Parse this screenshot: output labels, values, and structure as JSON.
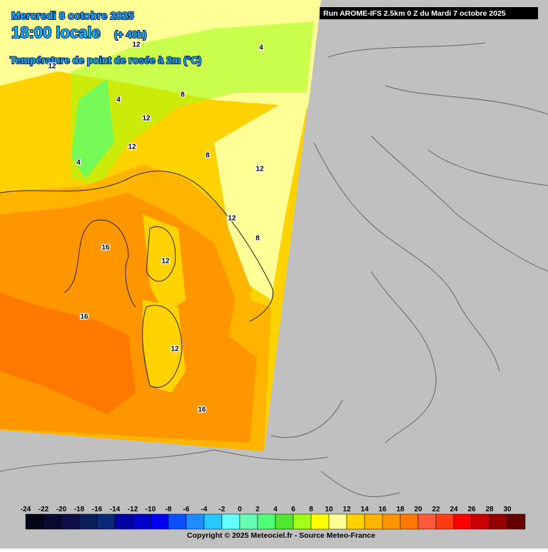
{
  "header": {
    "date": "Mercredi 8 octobre 2025",
    "time": "18:00 locale",
    "lead": "(+ 40h)",
    "parameter": "Température de point de rosée à 2m (°C)"
  },
  "run_info": "Run AROME-IFS 2.5km 0 Z du Mardi 7 octobre 2025",
  "colorbar": {
    "ticks": [
      -24,
      -22,
      -20,
      -18,
      -16,
      -14,
      -12,
      -10,
      -8,
      -6,
      -4,
      -2,
      0,
      2,
      4,
      6,
      8,
      10,
      12,
      14,
      16,
      18,
      20,
      22,
      24,
      26,
      28,
      30
    ],
    "colors": [
      "#050518",
      "#0a0a30",
      "#0f0f48",
      "#0a1e5a",
      "#0a2878",
      "#0000a0",
      "#0000c8",
      "#0000f0",
      "#0a50ff",
      "#1e8cff",
      "#28c8ff",
      "#64ffff",
      "#64ffb4",
      "#50ff78",
      "#50e632",
      "#a0ff14",
      "#ffff00",
      "#ffff96",
      "#ffd200",
      "#ffb400",
      "#ff9600",
      "#ff7800",
      "#ff5a3c",
      "#ff3c14",
      "#ff0000",
      "#c80000",
      "#960000",
      "#640000"
    ]
  },
  "contour_labels": [
    "12",
    "12",
    "4",
    "8",
    "12",
    "12",
    "4",
    "8",
    "12",
    "12",
    "16",
    "12",
    "16",
    "12",
    "16",
    "8",
    "4"
  ],
  "copyright": "Copyright © 2025 Meteociel.fr - Source Meteo-France"
}
